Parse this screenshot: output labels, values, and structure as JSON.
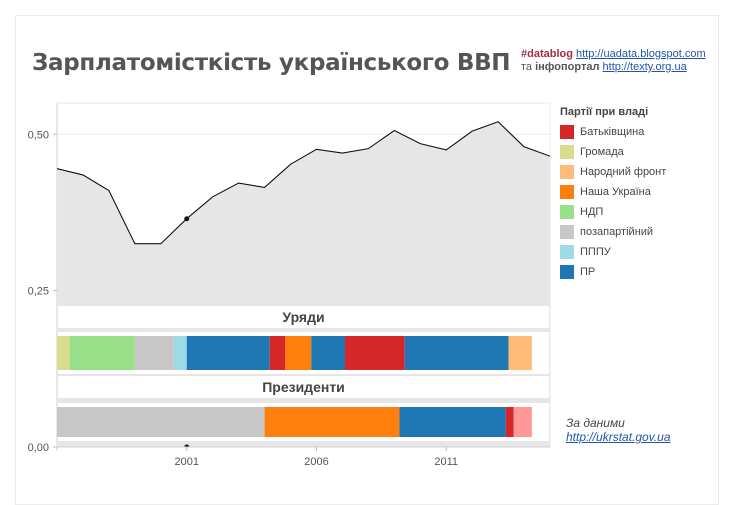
{
  "title": "Зарплатомісткість українського ВВП",
  "credits": {
    "tag": "#datablog",
    "url1": "http://uadata.blogspot.com",
    "conj": "та",
    "portal": "інфопортал",
    "url2": "http://texty.org.ua"
  },
  "legend": {
    "title": "Партії при владі",
    "items": [
      {
        "label": "Батьківщина",
        "color": "#d62728"
      },
      {
        "label": "Громада",
        "color": "#dbdb8d"
      },
      {
        "label": "Народний фронт",
        "color": "#ffbb78"
      },
      {
        "label": "Наша Україна",
        "color": "#ff7f0e"
      },
      {
        "label": "НДП",
        "color": "#98df8a"
      },
      {
        "label": "позапартійний",
        "color": "#c7c7c7"
      },
      {
        "label": "ПППУ",
        "color": "#9edae5"
      },
      {
        "label": "ПР",
        "color": "#1f77b4"
      }
    ]
  },
  "source": {
    "line1": "За даними",
    "link": "http://ukrstat.gov.ua"
  },
  "chart_data": {
    "type": "area",
    "x": [
      1996,
      1997,
      1998,
      1999,
      2000,
      2001,
      2002,
      2003,
      2004,
      2005,
      2006,
      2007,
      2008,
      2009,
      2010,
      2011,
      2012,
      2013,
      2014,
      2015
    ],
    "values": [
      0.445,
      0.435,
      0.41,
      0.325,
      0.325,
      0.365,
      0.4,
      0.422,
      0.415,
      0.452,
      0.476,
      0.47,
      0.477,
      0.506,
      0.485,
      0.475,
      0.505,
      0.52,
      0.48,
      0.465
    ],
    "xlim": [
      1996.0,
      2015.0
    ],
    "ylim": [
      0.0,
      0.55
    ],
    "yticks": [
      {
        "v": 0.5,
        "label": "0,50"
      },
      {
        "v": 0.25,
        "label": "0,25"
      },
      {
        "v": 0.0,
        "label": "0,00"
      }
    ],
    "xticks": [
      {
        "v": 2001,
        "label": "2001"
      },
      {
        "v": 2006,
        "label": "2006"
      },
      {
        "v": 2011,
        "label": "2011"
      }
    ],
    "area_color": "#e6e6e6",
    "grid": true,
    "marker": {
      "x": 2001,
      "y": 0.365
    },
    "governments": {
      "label": "Уряди",
      "segments": [
        {
          "party": "Громада",
          "start": 1996.0,
          "end": 1996.5,
          "color": "#dbdb8d"
        },
        {
          "party": "НДП",
          "start": 1996.5,
          "end": 1999.0,
          "color": "#98df8a"
        },
        {
          "party": "позапартійний",
          "start": 1999.0,
          "end": 2000.5,
          "color": "#c7c7c7"
        },
        {
          "party": "ПППУ",
          "start": 2000.5,
          "end": 2001.0,
          "color": "#9edae5"
        },
        {
          "party": "ПР",
          "start": 2001.0,
          "end": 2004.2,
          "color": "#1f77b4"
        },
        {
          "party": "Батьківщина",
          "start": 2004.2,
          "end": 2004.8,
          "color": "#d62728"
        },
        {
          "party": "Наша Україна",
          "start": 2004.8,
          "end": 2005.8,
          "color": "#ff7f0e"
        },
        {
          "party": "ПР",
          "start": 2005.8,
          "end": 2007.1,
          "color": "#1f77b4"
        },
        {
          "party": "Батьківщина",
          "start": 2007.1,
          "end": 2009.4,
          "color": "#d62728"
        },
        {
          "party": "ПР",
          "start": 2009.4,
          "end": 2013.4,
          "color": "#1f77b4"
        },
        {
          "party": "Народний фронт",
          "start": 2013.4,
          "end": 2014.3,
          "color": "#ffbb78"
        }
      ]
    },
    "presidents": {
      "label": "Президенти",
      "segments": [
        {
          "party": "позапартійний",
          "start": 1996.0,
          "end": 2004.0,
          "color": "#c7c7c7"
        },
        {
          "party": "Наша Україна",
          "start": 2004.0,
          "end": 2009.2,
          "color": "#ff7f0e"
        },
        {
          "party": "ПР",
          "start": 2009.2,
          "end": 2013.3,
          "color": "#1f77b4"
        },
        {
          "party": "Батьківщина",
          "start": 2013.3,
          "end": 2013.6,
          "color": "#d62728"
        },
        {
          "party": "Батьківщина",
          "start": 2013.6,
          "end": 2014.3,
          "color": "#ff9896"
        }
      ]
    }
  }
}
